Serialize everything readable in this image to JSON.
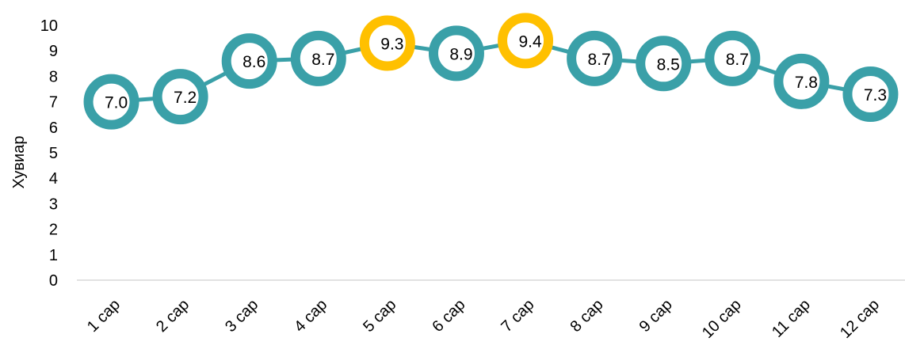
{
  "chart_data": {
    "type": "line",
    "categories": [
      "1 сар",
      "2 сар",
      "3 сар",
      "4 сар",
      "5 сар",
      "6 сар",
      "7 сар",
      "8 сар",
      "9 сар",
      "10 сар",
      "11 сар",
      "12 сар"
    ],
    "series": [
      {
        "values": [
          7.0,
          7.2,
          8.6,
          8.7,
          9.3,
          8.9,
          9.4,
          8.7,
          8.5,
          8.7,
          7.8,
          7.3
        ],
        "data_labels": [
          "7.0",
          "7.2",
          "8.6",
          "8.7",
          "9.3",
          "8.9",
          "9.4",
          "8.7",
          "8.5",
          "8.7",
          "7.8",
          "7.3"
        ],
        "highlighted": [
          false,
          false,
          false,
          false,
          true,
          false,
          true,
          false,
          false,
          false,
          false,
          false
        ]
      }
    ],
    "y_ticks": [
      "0",
      "1",
      "2",
      "3",
      "4",
      "5",
      "6",
      "7",
      "8",
      "9",
      "10"
    ],
    "xlabel": "",
    "ylabel": "Хувиар",
    "ylim": [
      0,
      10
    ],
    "grid": false,
    "legend": "none",
    "colors": {
      "line": "#3aa0a8",
      "marker": "#3aa0a8",
      "highlight": "#ffc000",
      "axis": "#d9d9d9"
    }
  }
}
